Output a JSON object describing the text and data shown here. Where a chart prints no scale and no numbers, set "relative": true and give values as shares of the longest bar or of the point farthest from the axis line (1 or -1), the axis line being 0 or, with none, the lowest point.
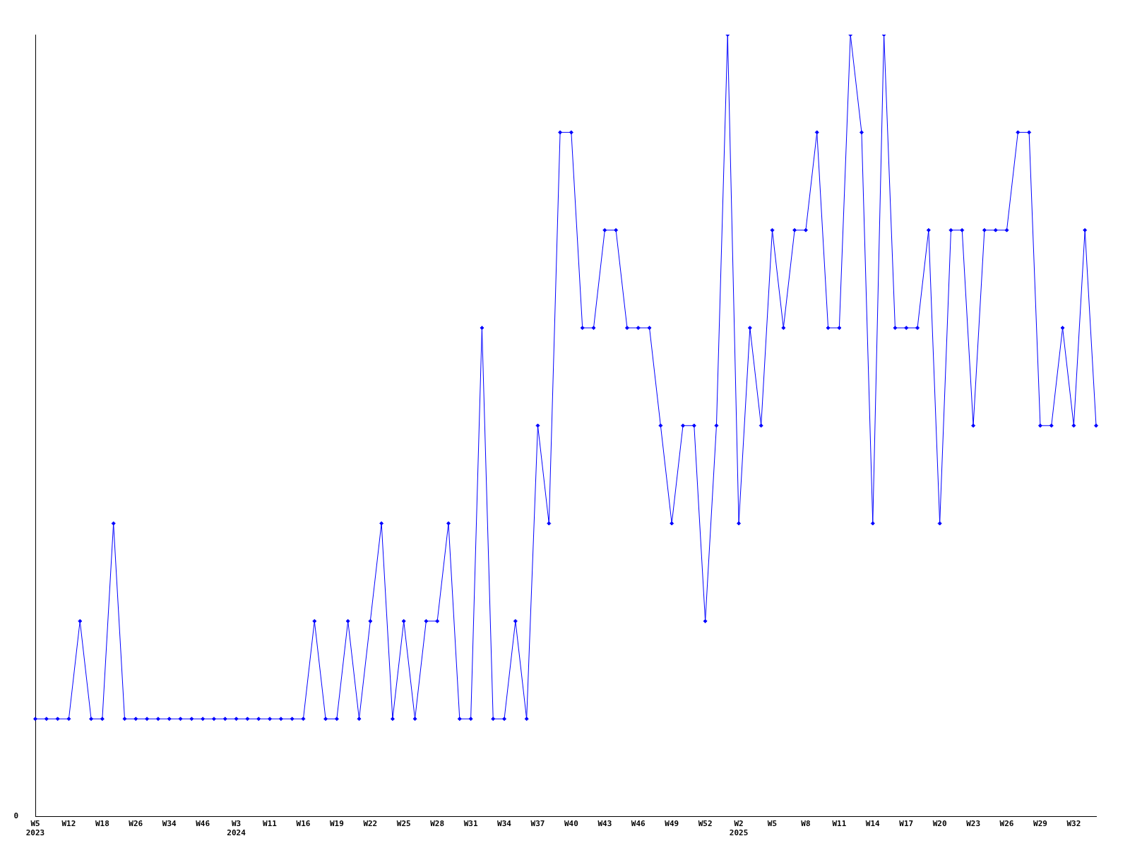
{
  "chart_data": {
    "type": "line",
    "relative": true,
    "marker": "diamond",
    "line_style": "solid",
    "grid": false,
    "legend": false,
    "categories": [
      "W5\n2023",
      null,
      null,
      "W12",
      null,
      null,
      "W18",
      null,
      null,
      "W26",
      null,
      null,
      "W34",
      null,
      null,
      "W46",
      null,
      null,
      "W3\n2024",
      null,
      null,
      "W11",
      null,
      null,
      "W16",
      null,
      null,
      "W19",
      null,
      null,
      "W22",
      null,
      null,
      "W25",
      null,
      null,
      "W28",
      null,
      null,
      "W31",
      null,
      null,
      "W34",
      null,
      null,
      "W37",
      null,
      null,
      "W40",
      null,
      null,
      "W43",
      null,
      null,
      "W46",
      null,
      null,
      "W49",
      null,
      null,
      "W52",
      null,
      null,
      "W2\n2025",
      null,
      null,
      "W5",
      null,
      null,
      "W8",
      null,
      null,
      "W11",
      null,
      null,
      "W14",
      null,
      null,
      "W17",
      null,
      null,
      "W20",
      null,
      null,
      "W23",
      null,
      null,
      "W26",
      null,
      null,
      "W29",
      null,
      null,
      "W32",
      null,
      null
    ],
    "series": [
      {
        "color": "#0000ff",
        "values": [
          0.125,
          0.125,
          0.125,
          0.125,
          0.25,
          0.125,
          0.125,
          0.375,
          0.125,
          0.125,
          0.125,
          0.125,
          0.125,
          0.125,
          0.125,
          0.125,
          0.125,
          0.125,
          0.125,
          0.125,
          0.125,
          0.125,
          0.125,
          0.125,
          0.125,
          0.25,
          0.125,
          0.125,
          0.25,
          0.125,
          0.25,
          0.375,
          0.125,
          0.25,
          0.125,
          0.25,
          0.25,
          0.375,
          0.125,
          0.125,
          0.625,
          0.125,
          0.125,
          0.25,
          0.125,
          0.5,
          0.375,
          0.875,
          0.875,
          0.625,
          0.625,
          0.75,
          0.75,
          0.625,
          0.625,
          0.625,
          0.5,
          0.375,
          0.5,
          0.5,
          0.25,
          0.5,
          1,
          0.375,
          0.625,
          0.5,
          0.75,
          0.625,
          0.75,
          0.75,
          0.875,
          0.625,
          0.625,
          1,
          0.875,
          0.375,
          1,
          0.625,
          0.625,
          0.625,
          0.75,
          0.375,
          0.75,
          0.75,
          0.5,
          0.75,
          0.75,
          0.75,
          0.875,
          0.875,
          0.5,
          0.5,
          0.625,
          0.5,
          0.75,
          0.5
        ]
      }
    ],
    "annotations": [
      "0"
    ]
  }
}
